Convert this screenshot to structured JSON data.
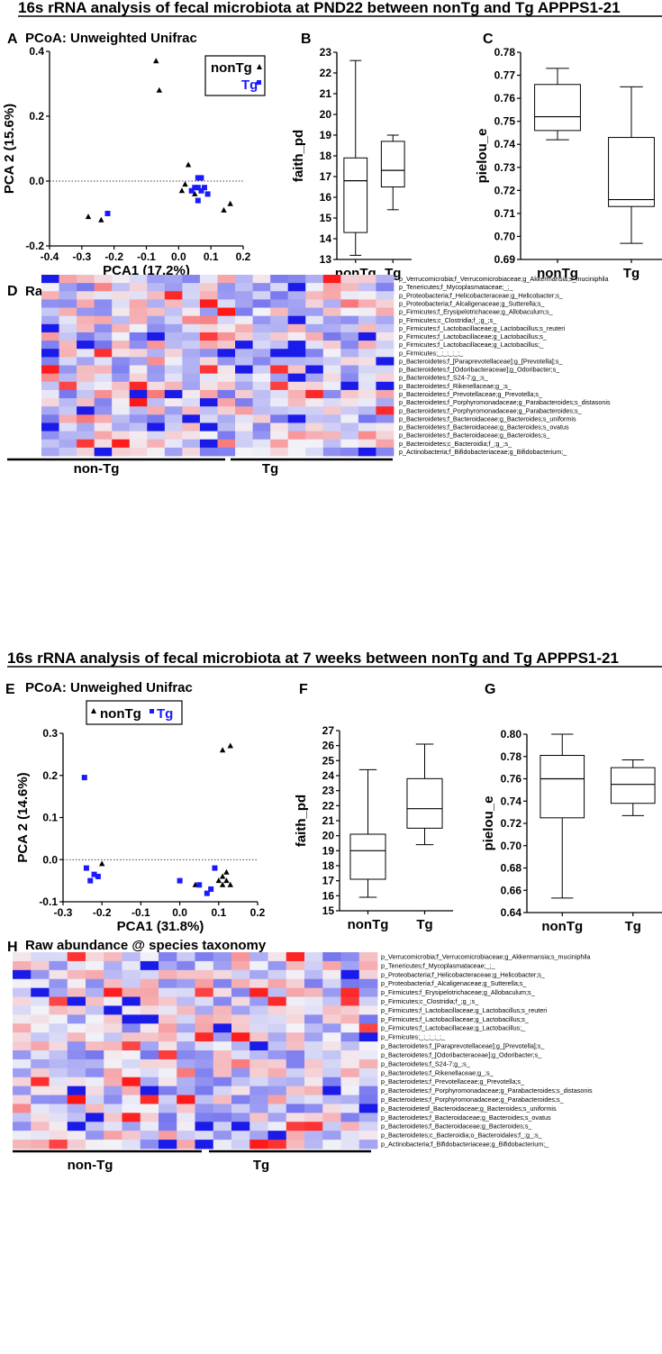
{
  "figure": {
    "section1_title": "16s rRNA analysis of fecal microbiota at PND22 between nonTg and Tg APPPS1-21",
    "section2_title": "16s rRNA analysis of fecal microbiota at 7 weeks between nonTg and Tg APPPS1-21",
    "colors": {
      "nonTg": "#000000",
      "Tg": "#1a1aff",
      "heat_low": "#1010e8",
      "heat_mid": "#f2f2f8",
      "heat_high": "#ff1010"
    }
  },
  "chart_data": [
    {
      "id": "A",
      "panel_label": "A",
      "type": "scatter",
      "title": "PCoA: Unweighted Unifrac",
      "xlabel": "PCA1 (17.2%)",
      "ylabel": "PCA 2 (15.6%)",
      "xlim": [
        -0.4,
        0.2
      ],
      "ylim": [
        -0.2,
        0.4
      ],
      "xticks": [
        "-0.4",
        "-0.3",
        "-0.2",
        "-0.1",
        "0.0",
        "0.1",
        "0.2"
      ],
      "yticks": [
        "-0.2",
        "0.0",
        "0.2",
        "0.4"
      ],
      "legend_position": "top-right",
      "series": [
        {
          "name": "nonTg",
          "marker": "triangle",
          "points": [
            [
              -0.07,
              0.37
            ],
            [
              -0.06,
              0.28
            ],
            [
              -0.28,
              -0.11
            ],
            [
              -0.24,
              -0.12
            ],
            [
              0.03,
              0.05
            ],
            [
              0.02,
              -0.01
            ],
            [
              0.01,
              -0.03
            ],
            [
              0.05,
              -0.04
            ],
            [
              0.14,
              -0.09
            ],
            [
              0.16,
              -0.07
            ]
          ]
        },
        {
          "name": "Tg",
          "marker": "square",
          "points": [
            [
              -0.22,
              -0.1
            ],
            [
              0.06,
              0.01
            ],
            [
              0.07,
              0.01
            ],
            [
              0.09,
              -0.04
            ],
            [
              0.05,
              -0.02
            ],
            [
              0.06,
              -0.02
            ],
            [
              0.04,
              -0.03
            ],
            [
              0.06,
              -0.06
            ],
            [
              0.08,
              -0.02
            ],
            [
              0.07,
              -0.03
            ]
          ]
        }
      ]
    },
    {
      "id": "B",
      "panel_label": "B",
      "type": "box",
      "ylabel": "faith_pd",
      "ylim": [
        13,
        23
      ],
      "yticks": [
        "13",
        "14",
        "15",
        "16",
        "17",
        "18",
        "19",
        "20",
        "21",
        "22",
        "23"
      ],
      "categories": [
        "nonTg",
        "Tg"
      ],
      "boxes": [
        {
          "min": 13.2,
          "q1": 14.3,
          "median": 16.8,
          "q3": 17.9,
          "max": 22.6
        },
        {
          "min": 15.4,
          "q1": 16.5,
          "median": 17.3,
          "q3": 18.7,
          "max": 19.0
        }
      ]
    },
    {
      "id": "C",
      "panel_label": "C",
      "type": "box",
      "ylabel": "pielou_e",
      "ylim": [
        0.69,
        0.78
      ],
      "yticks": [
        "0.69",
        "0.70",
        "0.71",
        "0.72",
        "0.73",
        "0.74",
        "0.75",
        "0.76",
        "0.77",
        "0.78"
      ],
      "categories": [
        "nonTg",
        "Tg"
      ],
      "boxes": [
        {
          "min": 0.742,
          "q1": 0.746,
          "median": 0.752,
          "q3": 0.766,
          "max": 0.773
        },
        {
          "min": 0.697,
          "q1": 0.713,
          "median": 0.716,
          "q3": 0.743,
          "max": 0.765
        }
      ]
    },
    {
      "id": "D",
      "panel_label": "D",
      "type": "heatmap",
      "title": "Raw abundance @ Species taxonomy",
      "group_labels": [
        "non-Tg",
        "Tg"
      ],
      "n_columns": 20,
      "group_split_after_column": 10,
      "rows": [
        "p_Verrucomicrobia;f_Verrucomicrobiaceae;g_Akkermansia;s_muciniphila",
        "p_Tenericutes;f_Mycoplasmataceae;_;_",
        "p_Proteobacteria;f_Helicobacteraceae;g_Helicobacter;s_",
        "p_Proteobacteria;f_Alcaligenaceae;g_Sutterella;s_",
        "p_Firmicutes;f_Erysipelotrichaceae;g_Allobaculum;s_",
        "p_Firmicutes;c_Clostridia;f_;g_;s_",
        "p_Firmicutes;f_Lactobacillaceae;g_Lactobacillus;s_reuteri",
        "p_Firmicutes;f_Lactobacillaceae;g_Lactobacillus;s_",
        "p_Firmicutes;f_Lactobacillaceae;g_Lactobacillus;_",
        "p_Firmicutes;_;_;_;_;_",
        "p_Bacteroidetes;f_[Paraprevotellaceae];g_[Prevotella];s_",
        "p_Bacteroidetes;f_[Odoribacteraceae];g_Odoribacter;s_",
        "p_Bacteroidetes;f_S24-7;g_;s_",
        "p_Bacteroidetes;f_Rikenellaceae;g_;s_",
        "p_Bacteroidetes;f_Prevotellaceae;g_Prevotella;s_",
        "p_Bacteroidetes;f_Porphyromonadaceae;g_Parabacteroides;s_distasonis",
        "p_Bacteroidetes;f_Porphyromonadaceae;g_Parabacteroides;s_",
        "p_Bacteroidetes;f_Bacteroidaceae;g_Bacteroides;s_uniformis",
        "p_Bacteroidetes;f_Bacteroidaceae;g_Bacteroides;s_ovatus",
        "p_Bacteroidetes;f_Bacteroidaceae;g_Bacteroides;s_",
        "p_Bacteroidetes;c_Bacteroidia;f_;g_;s_",
        "p_Actinobacteria;f_Bifidobacteriaceae;g_Bifidobacterium;_"
      ]
    },
    {
      "id": "E",
      "panel_label": "E",
      "type": "scatter",
      "title": "PCoA: Unweighed Unifrac",
      "xlabel": "PCA1 (31.8%)",
      "ylabel": "PCA 2 (14.6%)",
      "xlim": [
        -0.3,
        0.2
      ],
      "ylim": [
        -0.1,
        0.3
      ],
      "xticks": [
        "-0.3",
        "-0.2",
        "-0.1",
        "0.0",
        "0.1",
        "0.2"
      ],
      "yticks": [
        "-0.1",
        "0.0",
        "0.1",
        "0.2",
        "0.3"
      ],
      "legend_position": "top",
      "series": [
        {
          "name": "nonTg",
          "marker": "triangle",
          "points": [
            [
              0.11,
              0.26
            ],
            [
              0.13,
              0.27
            ],
            [
              -0.2,
              -0.01
            ],
            [
              0.04,
              -0.06
            ],
            [
              0.11,
              -0.04
            ],
            [
              0.12,
              -0.03
            ],
            [
              0.12,
              -0.05
            ],
            [
              0.13,
              -0.06
            ],
            [
              0.11,
              -0.06
            ],
            [
              0.1,
              -0.05
            ]
          ]
        },
        {
          "name": "Tg",
          "marker": "square",
          "points": [
            [
              -0.245,
              0.195
            ],
            [
              -0.24,
              -0.02
            ],
            [
              -0.23,
              -0.05
            ],
            [
              -0.21,
              -0.04
            ],
            [
              -0.22,
              -0.035
            ],
            [
              0.0,
              -0.05
            ],
            [
              0.05,
              -0.06
            ],
            [
              0.08,
              -0.07
            ],
            [
              0.07,
              -0.08
            ],
            [
              0.09,
              -0.02
            ]
          ]
        }
      ]
    },
    {
      "id": "F",
      "panel_label": "F",
      "type": "box",
      "ylabel": "faith_pd",
      "ylim": [
        15,
        27
      ],
      "yticks": [
        "15",
        "16",
        "17",
        "18",
        "19",
        "20",
        "21",
        "22",
        "23",
        "24",
        "25",
        "26",
        "27"
      ],
      "categories": [
        "nonTg",
        "Tg"
      ],
      "boxes": [
        {
          "min": 15.9,
          "q1": 17.1,
          "median": 19.0,
          "q3": 20.1,
          "max": 24.4
        },
        {
          "min": 19.4,
          "q1": 20.5,
          "median": 21.8,
          "q3": 23.8,
          "max": 26.1
        }
      ]
    },
    {
      "id": "G",
      "panel_label": "G",
      "type": "box",
      "ylabel": "pielou_e",
      "ylim": [
        0.64,
        0.8
      ],
      "yticks": [
        "0.64",
        "0.66",
        "0.68",
        "0.70",
        "0.72",
        "0.74",
        "0.76",
        "0.78",
        "0.80"
      ],
      "categories": [
        "nonTg",
        "Tg"
      ],
      "boxes": [
        {
          "min": 0.653,
          "q1": 0.725,
          "median": 0.76,
          "q3": 0.781,
          "max": 0.8
        },
        {
          "min": 0.727,
          "q1": 0.738,
          "median": 0.755,
          "q3": 0.77,
          "max": 0.777
        }
      ]
    },
    {
      "id": "H",
      "panel_label": "H",
      "type": "heatmap",
      "title": "Raw abundance @ species taxonomy",
      "group_labels": [
        "non-Tg",
        "Tg"
      ],
      "n_columns": 20,
      "group_split_after_column": 10,
      "rows": [
        "p_Verrucomicrobia;f_Verrucomicrobiaceae;g_Akkermansia;s_muciniphila",
        "p_Tenericutes;f_Mycoplasmataceae;_;_",
        "p_Proteobacteria;f_Helicobacteraceae;g_Helicobacter;s_",
        "p_Proteobacteria;f_Alcaligenaceae;g_Sutterella;s_",
        "p_Firmicutes;f_Erysipelotrichaceae;g_Allobaculum;s_",
        "p_Firmicutes;c_Clostridia;f_;g_;s_",
        "p_Firmicutes;f_Lactobacillaceae;g_Lactobacillus;s_reuteri",
        "p_Firmicutes;f_Lactobacillaceae;g_Lactobacillus;s_",
        "p_Firmicutes;f_Lactobacillaceae;g_Lactobacillus;_",
        "p_Firmicutes;_;_;_;_;_",
        "p_Bacteroidetes;f_[Paraprevotellaceae];g_[Prevotella];s_",
        "p_Bacteroidetes;f_[Odoribacteraceae];g_Odoribacter;s_",
        "p_Bacteroidetes;f_S24-7;g_;s_",
        "p_Bacteroidetes;f_Rikenellaceae;g_;s_",
        "p_Bacteroidetes;f_Prevotellaceae;g_Prevotella;s_",
        "p_Bacteroidetes;f_Porphyromonadaceae;g_Parabacteroides;s_distasonis",
        "p_Bacteroidetes;f_Porphyromonadaceae;g_Parabacteroides;s_",
        "p_Bacteroidetesf_Bacteroidaceae;g_Bacteroides;s_uniformis",
        "p_Bacteroidetes;f_Bacteroidaceae;g_Bacteroides;s_ovatus",
        "p_Bacteroidetes;f_Bacteroidaceae;g_Bacteroides;s_",
        "p_Bacteroidetes;c_Bacteroidia;o_Bacteroidales;f_;g_;s_",
        "p_Actinobacteria;f_Bifidobacteriaceae;g_Bifidobacterium;_"
      ]
    }
  ]
}
